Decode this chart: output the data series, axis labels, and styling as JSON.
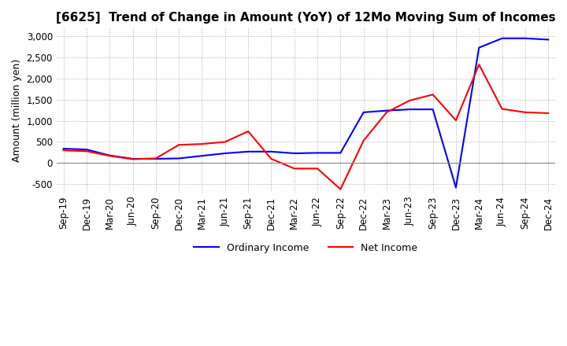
{
  "title": "[6625]  Trend of Change in Amount (YoY) of 12Mo Moving Sum of Incomes",
  "ylabel": "Amount (million yen)",
  "ylim": [
    -700,
    3200
  ],
  "yticks": [
    -500,
    0,
    500,
    1000,
    1500,
    2000,
    2500,
    3000
  ],
  "legend_labels": [
    "Ordinary Income",
    "Net Income"
  ],
  "line_colors": [
    "#0000ff",
    "#ff0000"
  ],
  "dates": [
    "Sep-19",
    "Dec-19",
    "Mar-20",
    "Jun-20",
    "Sep-20",
    "Dec-20",
    "Mar-21",
    "Jun-21",
    "Sep-21",
    "Dec-21",
    "Mar-22",
    "Jun-22",
    "Sep-22",
    "Dec-22",
    "Mar-23",
    "Jun-23",
    "Sep-23",
    "Dec-23",
    "Mar-24",
    "Jun-24",
    "Sep-24",
    "Dec-24"
  ],
  "ordinary_income": [
    340,
    320,
    180,
    100,
    100,
    110,
    170,
    230,
    270,
    270,
    230,
    240,
    240,
    1200,
    1240,
    1270,
    1270,
    -580,
    2730,
    2950,
    2950,
    2920
  ],
  "net_income": [
    300,
    280,
    170,
    90,
    110,
    430,
    450,
    500,
    750,
    100,
    -130,
    -130,
    -620,
    530,
    1200,
    1480,
    1620,
    1010,
    2330,
    1280,
    1200,
    1180
  ],
  "background_color": "#ffffff",
  "grid_color": "#aaaaaa",
  "title_fontsize": 11,
  "label_fontsize": 9,
  "tick_fontsize": 8.5
}
